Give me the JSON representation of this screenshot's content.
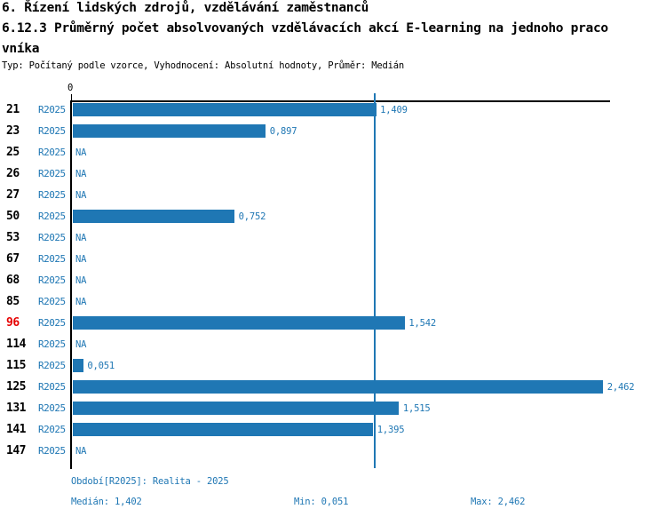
{
  "header": {
    "title_line1": "6. Řízení lidských zdrojů, vzdělávání zaměstnanců",
    "title_line2": "6.12.3 Průměrný počet absolvovaných vzdělávacích akcí E-learning na jednoho praco",
    "title_line3": "vníka",
    "subtitle": "Typ: Počítaný podle vzorce, Vyhodnocení: Absolutní hodnoty, Průměr: Medián"
  },
  "axis": {
    "zero_label": "0"
  },
  "chart_data": {
    "type": "bar",
    "orientation": "horizontal",
    "title": "6.12.3 Průměrný počet absolvovaných vzdělávacích akcí E-learning na jednoho pracovníka",
    "series_label": "R2025",
    "xlim": [
      0,
      2.5
    ],
    "median_value": 1.402,
    "highlighted_category": "96",
    "rows": [
      {
        "category": "21",
        "period": "R2025",
        "value": 1.409,
        "label": "1,409",
        "highlight": false
      },
      {
        "category": "23",
        "period": "R2025",
        "value": 0.897,
        "label": "0,897",
        "highlight": false
      },
      {
        "category": "25",
        "period": "R2025",
        "value": null,
        "label": "NA",
        "highlight": false
      },
      {
        "category": "26",
        "period": "R2025",
        "value": null,
        "label": "NA",
        "highlight": false
      },
      {
        "category": "27",
        "period": "R2025",
        "value": null,
        "label": "NA",
        "highlight": false
      },
      {
        "category": "50",
        "period": "R2025",
        "value": 0.752,
        "label": "0,752",
        "highlight": false
      },
      {
        "category": "53",
        "period": "R2025",
        "value": null,
        "label": "NA",
        "highlight": false
      },
      {
        "category": "67",
        "period": "R2025",
        "value": null,
        "label": "NA",
        "highlight": false
      },
      {
        "category": "68",
        "period": "R2025",
        "value": null,
        "label": "NA",
        "highlight": false
      },
      {
        "category": "85",
        "period": "R2025",
        "value": null,
        "label": "NA",
        "highlight": false
      },
      {
        "category": "96",
        "period": "R2025",
        "value": 1.542,
        "label": "1,542",
        "highlight": true
      },
      {
        "category": "114",
        "period": "R2025",
        "value": null,
        "label": "NA",
        "highlight": false
      },
      {
        "category": "115",
        "period": "R2025",
        "value": 0.051,
        "label": "0,051",
        "highlight": false
      },
      {
        "category": "125",
        "period": "R2025",
        "value": 2.462,
        "label": "2,462",
        "highlight": false
      },
      {
        "category": "131",
        "period": "R2025",
        "value": 1.515,
        "label": "1,515",
        "highlight": false
      },
      {
        "category": "141",
        "period": "R2025",
        "value": 1.395,
        "label": "1,395",
        "highlight": false
      },
      {
        "category": "147",
        "period": "R2025",
        "value": null,
        "label": "NA",
        "highlight": false
      }
    ]
  },
  "footer": {
    "period_label": "Období[R2025]: Realita - 2025",
    "median_label": "Medián: 1,402",
    "min_label": "Min: 0,051",
    "max_label": "Max: 2,462"
  },
  "colors": {
    "bar_blue": "#1f77b4",
    "highlight_red": "#e60000",
    "axis_black": "#000000"
  }
}
